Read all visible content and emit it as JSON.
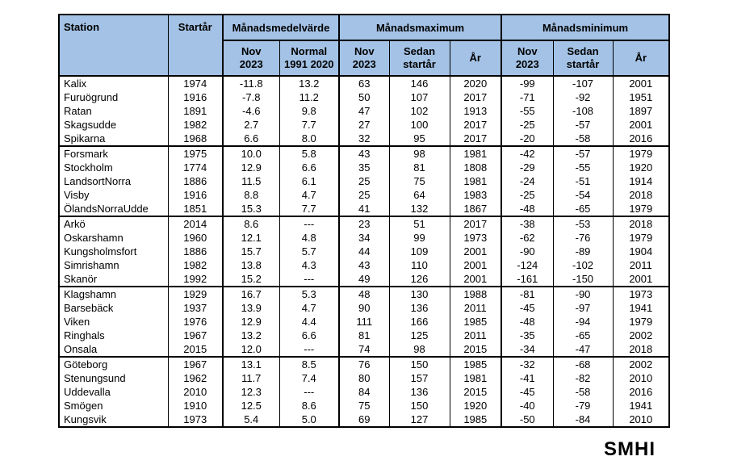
{
  "page": {
    "brand": "SMHI"
  },
  "colors": {
    "header_bg": "#a3c2e5",
    "border": "#000000",
    "text": "#000000",
    "page_bg": "#ffffff"
  },
  "table": {
    "header": {
      "station": "Station",
      "start_year": "Startår",
      "groups": [
        {
          "label": "Månadsmedelvärde",
          "subs": [
            {
              "l1": "Nov",
              "l2": "2023"
            },
            {
              "l1": "Normal",
              "l2": "1991 2020"
            }
          ]
        },
        {
          "label": "Månadsmaximum",
          "subs": [
            {
              "l1": "Nov",
              "l2": "2023"
            },
            {
              "l1": "Sedan",
              "l2": "startår"
            },
            {
              "l1": "År",
              "l2": ""
            }
          ]
        },
        {
          "label": "Månadsminimum",
          "subs": [
            {
              "l1": "Nov",
              "l2": "2023"
            },
            {
              "l1": "Sedan",
              "l2": "startår"
            },
            {
              "l1": "År",
              "l2": ""
            }
          ]
        }
      ]
    },
    "row_groups": [
      [
        [
          "Kalix",
          "1974",
          "-11.8",
          "13.2",
          "63",
          "146",
          "2020",
          "-99",
          "-107",
          "2001"
        ],
        [
          "Furuögrund",
          "1916",
          "-7.8",
          "11.2",
          "50",
          "107",
          "2017",
          "-71",
          "-92",
          "1951"
        ],
        [
          "Ratan",
          "1891",
          "-4.6",
          "9.8",
          "47",
          "102",
          "1913",
          "-55",
          "-108",
          "1897"
        ],
        [
          "Skagsudde",
          "1982",
          "2.7",
          "7.7",
          "27",
          "100",
          "2017",
          "-25",
          "-57",
          "2001"
        ],
        [
          "Spikarna",
          "1968",
          "6.6",
          "8.0",
          "32",
          "95",
          "2017",
          "-20",
          "-58",
          "2016"
        ]
      ],
      [
        [
          "Forsmark",
          "1975",
          "10.0",
          "5.8",
          "43",
          "98",
          "1981",
          "-42",
          "-57",
          "1979"
        ],
        [
          "Stockholm",
          "1774",
          "12.9",
          "6.6",
          "35",
          "81",
          "1808",
          "-29",
          "-55",
          "1920"
        ],
        [
          "LandsortNorra",
          "1886",
          "11.5",
          "6.1",
          "25",
          "75",
          "1981",
          "-24",
          "-51",
          "1914"
        ],
        [
          "Visby",
          "1916",
          "8.8",
          "4.7",
          "25",
          "64",
          "1983",
          "-25",
          "-54",
          "2018"
        ],
        [
          "ÖlandsNorraUdde",
          "1851",
          "15.3",
          "7.7",
          "41",
          "132",
          "1867",
          "-48",
          "-65",
          "1979"
        ]
      ],
      [
        [
          "Arkö",
          "2014",
          "8.6",
          "---",
          "23",
          "51",
          "2017",
          "-38",
          "-53",
          "2018"
        ],
        [
          "Oskarshamn",
          "1960",
          "12.1",
          "4.8",
          "34",
          "99",
          "1973",
          "-62",
          "-76",
          "1979"
        ],
        [
          "Kungsholmsfort",
          "1886",
          "15.7",
          "5.7",
          "44",
          "109",
          "2001",
          "-90",
          "-89",
          "1904"
        ],
        [
          "Simrishamn",
          "1982",
          "13.8",
          "4.3",
          "43",
          "110",
          "2001",
          "-124",
          "-102",
          "2011"
        ],
        [
          "Skanör",
          "1992",
          "15.2",
          "---",
          "49",
          "126",
          "2001",
          "-161",
          "-150",
          "2001"
        ]
      ],
      [
        [
          "Klagshamn",
          "1929",
          "16.7",
          "5.3",
          "48",
          "130",
          "1988",
          "-81",
          "-90",
          "1973"
        ],
        [
          "Barsebäck",
          "1937",
          "13.9",
          "4.7",
          "90",
          "136",
          "2011",
          "-45",
          "-97",
          "1941"
        ],
        [
          "Viken",
          "1976",
          "12.9",
          "4.4",
          "111",
          "166",
          "1985",
          "-48",
          "-94",
          "1979"
        ],
        [
          "Ringhals",
          "1967",
          "13.2",
          "6.6",
          "81",
          "125",
          "2011",
          "-35",
          "-65",
          "2002"
        ],
        [
          "Onsala",
          "2015",
          "12.0",
          "---",
          "74",
          "98",
          "2015",
          "-34",
          "-47",
          "2018"
        ]
      ],
      [
        [
          "Göteborg",
          "1967",
          "13.1",
          "8.5",
          "76",
          "150",
          "1985",
          "-32",
          "-68",
          "2002"
        ],
        [
          "Stenungsund",
          "1962",
          "11.7",
          "7.4",
          "80",
          "157",
          "1981",
          "-41",
          "-82",
          "2010"
        ],
        [
          "Uddevalla",
          "2010",
          "12.3",
          "---",
          "84",
          "136",
          "2015",
          "-45",
          "-58",
          "2016"
        ],
        [
          "Smögen",
          "1910",
          "12.5",
          "8.6",
          "75",
          "150",
          "1920",
          "-40",
          "-79",
          "1941"
        ],
        [
          "Kungsvik",
          "1973",
          "5.4",
          "5.0",
          "69",
          "127",
          "1985",
          "-50",
          "-84",
          "2010"
        ]
      ]
    ]
  }
}
